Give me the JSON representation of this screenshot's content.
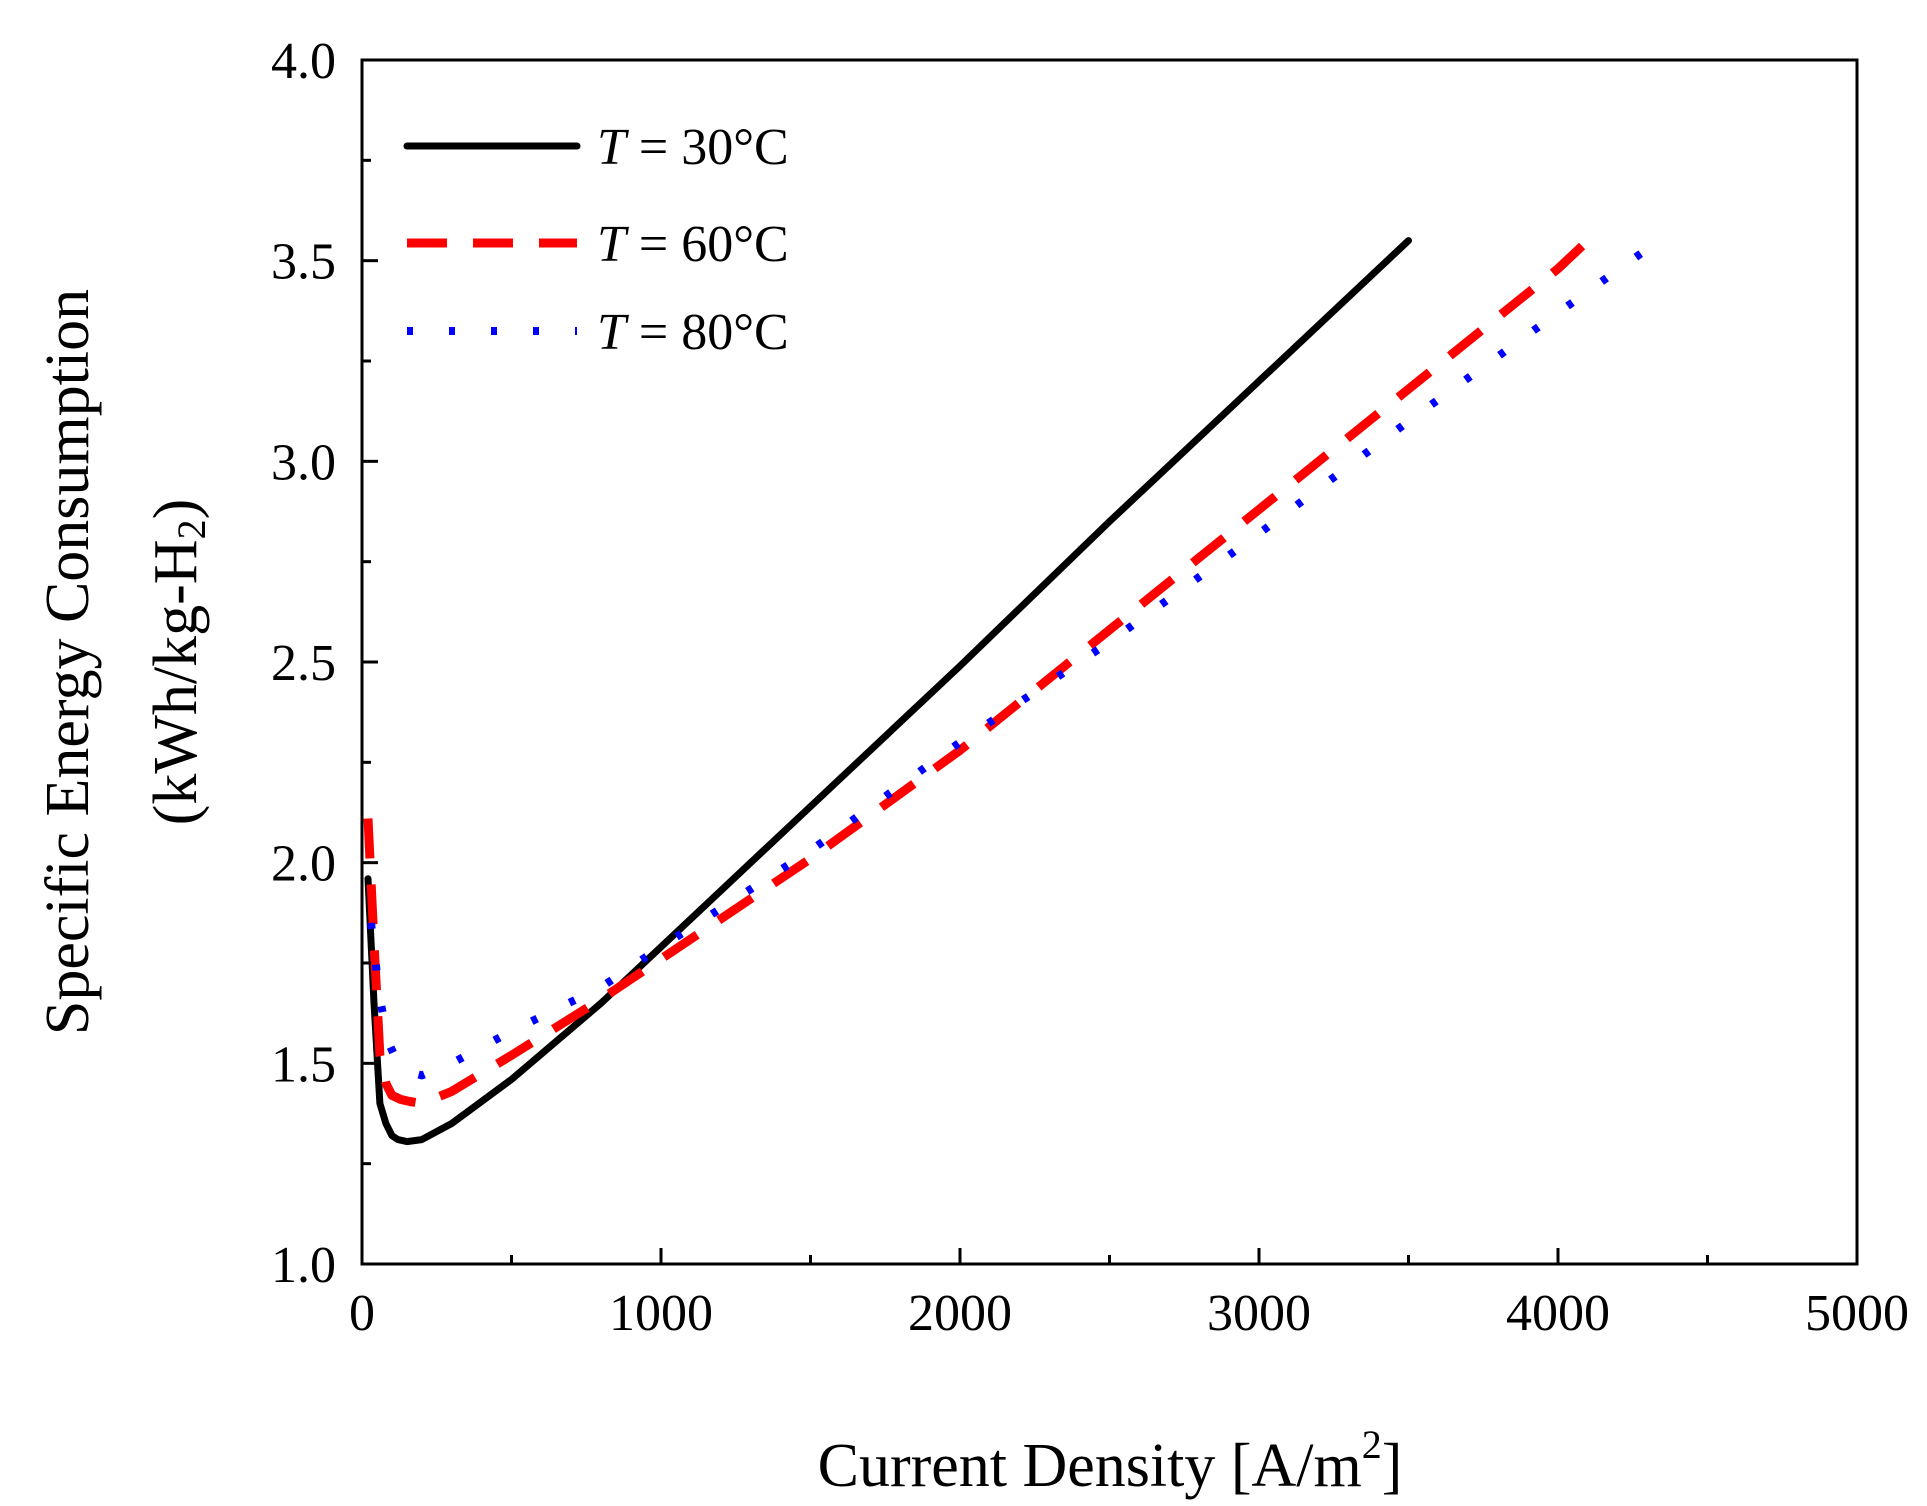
{
  "chart_data": {
    "type": "line",
    "title": "",
    "xlabel": "Current Density [A/m2]",
    "xlabel_main": "Current Density [A/m",
    "xlabel_sup": "2",
    "xlabel_tail": "]",
    "ylabel": "Specific Energy Consumption (kWh/kg-H2)",
    "ylabel_line1": "Specific Energy Consumption",
    "ylabel_line2_main": "(kWh/kg-H",
    "ylabel_line2_sub": "2",
    "ylabel_line2_tail": ")",
    "xlim": [
      0,
      5000
    ],
    "ylim": [
      1.0,
      4.0
    ],
    "xticks": [
      0,
      1000,
      2000,
      3000,
      4000,
      5000
    ],
    "xtick_labels": [
      "0",
      "1000",
      "2000",
      "3000",
      "4000",
      "5000"
    ],
    "xminor": [
      500,
      1500,
      2500,
      3500,
      4500
    ],
    "yticks": [
      1.0,
      1.5,
      2.0,
      2.5,
      3.0,
      3.5,
      4.0
    ],
    "ytick_labels": [
      "1.0",
      "1.5",
      "2.0",
      "2.5",
      "3.0",
      "3.5",
      "4.0"
    ],
    "yminor": [
      1.25,
      1.75,
      2.25,
      2.75,
      3.25,
      3.75
    ],
    "grid": false,
    "legend_position": "top-left",
    "series": [
      {
        "name": "T = 30°C",
        "legend_var": "T",
        "legend_rest": " = 30°C",
        "color": "#000000",
        "style": "solid",
        "x": [
          20,
          40,
          60,
          80,
          100,
          120,
          150,
          200,
          300,
          500,
          800,
          1000,
          1500,
          2000,
          2500,
          3000,
          3500
        ],
        "y": [
          1.96,
          1.65,
          1.4,
          1.35,
          1.32,
          1.31,
          1.305,
          1.31,
          1.35,
          1.46,
          1.65,
          1.79,
          2.14,
          2.49,
          2.85,
          3.2,
          3.55
        ]
      },
      {
        "name": "T = 60°C",
        "legend_var": "T",
        "legend_rest": " = 60°C",
        "color": "#ff0000",
        "style": "dashed",
        "x": [
          20,
          40,
          60,
          80,
          100,
          130,
          160,
          200,
          300,
          500,
          800,
          1000,
          1500,
          2000,
          2500,
          3000,
          3500,
          4000,
          4100
        ],
        "y": [
          2.11,
          1.8,
          1.52,
          1.45,
          1.42,
          1.41,
          1.405,
          1.4,
          1.43,
          1.52,
          1.66,
          1.76,
          2.01,
          2.28,
          2.58,
          2.88,
          3.18,
          3.48,
          3.55
        ]
      },
      {
        "name": "T = 80°C",
        "legend_var": "T",
        "legend_rest": " = 80°C",
        "color": "#0000ff",
        "style": "dotted",
        "x": [
          30,
          60,
          90,
          120,
          150,
          200,
          300,
          500,
          800,
          1000,
          1500,
          2000,
          2500,
          3000,
          3500,
          4000,
          4300
        ],
        "y": [
          1.85,
          1.66,
          1.55,
          1.5,
          1.48,
          1.47,
          1.5,
          1.58,
          1.69,
          1.79,
          2.03,
          2.3,
          2.55,
          2.82,
          3.1,
          3.37,
          3.53
        ]
      }
    ]
  }
}
